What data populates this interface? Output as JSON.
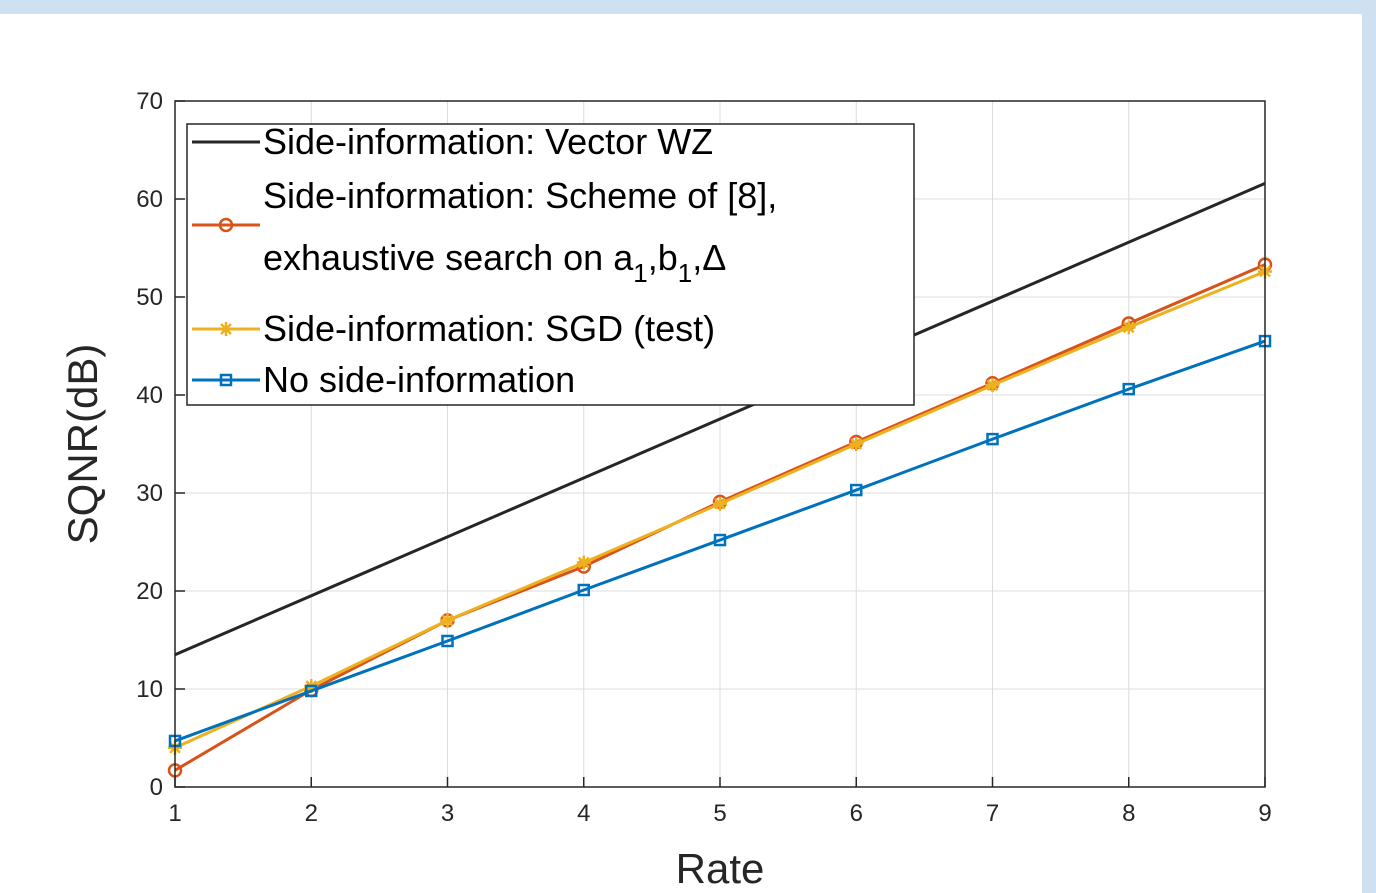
{
  "chart_data": {
    "type": "line",
    "title": "",
    "xlabel": "Rate",
    "ylabel": "SQNR(dB)",
    "xlim": [
      1,
      9
    ],
    "ylim": [
      0,
      70
    ],
    "x_ticks": [
      1,
      2,
      3,
      4,
      5,
      6,
      7,
      8,
      9
    ],
    "y_ticks": [
      0,
      10,
      20,
      30,
      40,
      50,
      60,
      70
    ],
    "grid": true,
    "legend_position": "top-left",
    "series": [
      {
        "name": "Side-information: Vector WZ",
        "color": "#262626",
        "marker": "none",
        "x": [
          1,
          9
        ],
        "y": [
          13.5,
          61.6
        ]
      },
      {
        "name": "Side-information: Scheme of [8], exhaustive search on a_1,b_1,Δ",
        "name_lines": [
          "Side-information: Scheme of [8],",
          "exhaustive search on a"
        ],
        "name_math": {
          "sub_a": "1",
          "mid": ",b",
          "sub_b": "1",
          "tail": ",Δ"
        },
        "color": "#d95319",
        "marker": "circle",
        "x": [
          1,
          2,
          3,
          4,
          5,
          6,
          7,
          8,
          9
        ],
        "y": [
          1.7,
          9.9,
          17.0,
          22.5,
          29.1,
          35.2,
          41.2,
          47.3,
          53.3
        ]
      },
      {
        "name": "Side-information: SGD (test)",
        "color": "#edb120",
        "marker": "asterisk",
        "x": [
          1,
          2,
          3,
          4,
          5,
          6,
          7,
          8,
          9
        ],
        "y": [
          4.0,
          10.3,
          17.0,
          22.9,
          28.9,
          35.0,
          41.0,
          46.9,
          52.6
        ]
      },
      {
        "name": "No side-information",
        "color": "#0072bd",
        "marker": "square",
        "x": [
          1,
          2,
          3,
          4,
          5,
          6,
          7,
          8,
          9
        ],
        "y": [
          4.7,
          9.8,
          14.9,
          20.1,
          25.2,
          30.3,
          35.5,
          40.6,
          45.5
        ]
      }
    ]
  }
}
